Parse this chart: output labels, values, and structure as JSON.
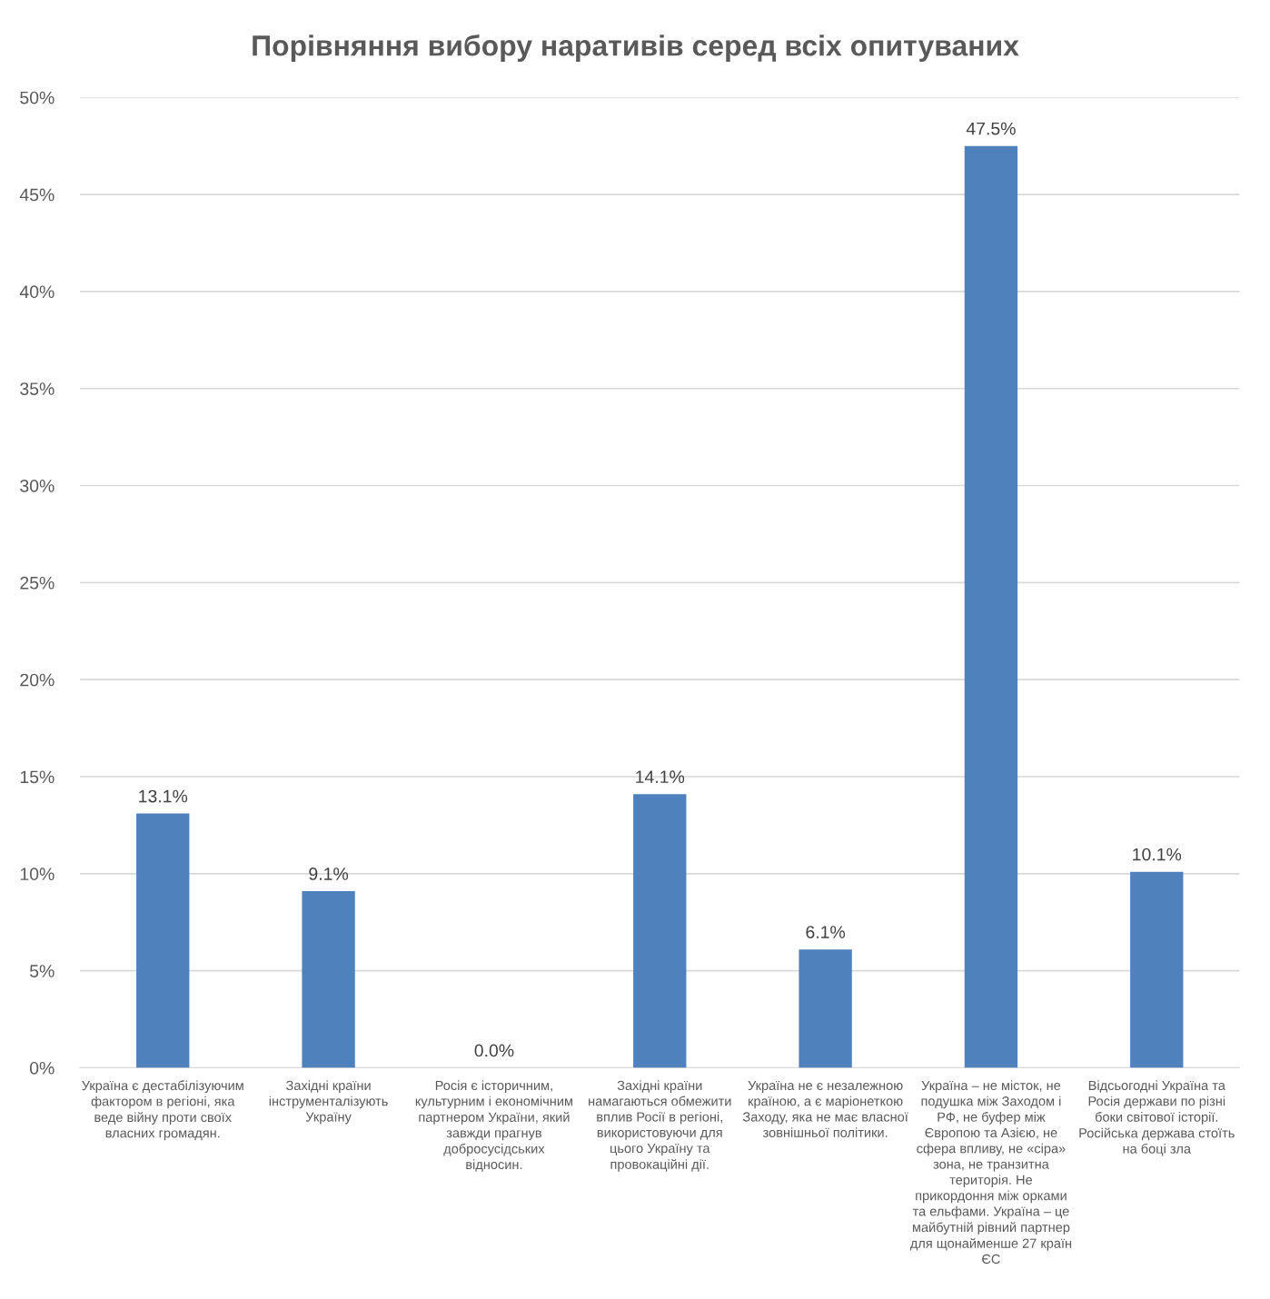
{
  "chart_data": {
    "type": "bar",
    "title": "Порівняння вибору наративів серед всіх опитуваних",
    "categories": [
      "Україна є дестабілізуючим\nфактором в регіоні, яка\nведе війну проти своїх\nвласних громадян.",
      "Західні країни\nінструменталізують\nУкраїну",
      "Росія є історичним,\nкультурним і економічним\nпартнером України, який\nзавжди прагнув\nдобросусідських\nвідносин.",
      "Західні країни\nнамагаються обмежити\nвплив Росії в регіоні,\nвикористовуючи для\nцього Україну та\nпровокаційні дії.",
      "Україна не є незалежною\nкраїною, а є маріонеткою\nЗаходу, яка не має власної\nзовнішньої політики.",
      "Україна – не місток, не\nподушка між Заходом і\nРФ, не буфер між\nЄвропою та Азією, не\nсфера впливу, не «сіра»\nзона, не транзитна\nтериторія. Не\nприкордоння між орками\nта ельфами. Україна – це\nмайбутній рівний партнер\nдля щонайменше 27 країн\nЄС",
      "Відсьогодні Україна та\nРосія держави по різні\nбоки світової історії.\nРосійська держава стоїть\nна боці зла"
    ],
    "values": [
      13.1,
      9.1,
      0.0,
      14.1,
      6.1,
      47.5,
      10.1
    ],
    "value_labels": [
      "13.1%",
      "9.1%",
      "0.0%",
      "14.1%",
      "6.1%",
      "47.5%",
      "10.1%"
    ],
    "color": "#4f81bd",
    "ylim": [
      0,
      50
    ],
    "yticks": [
      {
        "value": 0,
        "label": "0%"
      },
      {
        "value": 5,
        "label": "5%"
      },
      {
        "value": 10,
        "label": "10%"
      },
      {
        "value": 15,
        "label": "15%"
      },
      {
        "value": 20,
        "label": "20%"
      },
      {
        "value": 25,
        "label": "25%"
      },
      {
        "value": 30,
        "label": "30%"
      },
      {
        "value": 35,
        "label": "35%"
      },
      {
        "value": 40,
        "label": "40%"
      },
      {
        "value": 45,
        "label": "45%"
      },
      {
        "value": 50,
        "label": "50%"
      }
    ],
    "grid": "y"
  }
}
